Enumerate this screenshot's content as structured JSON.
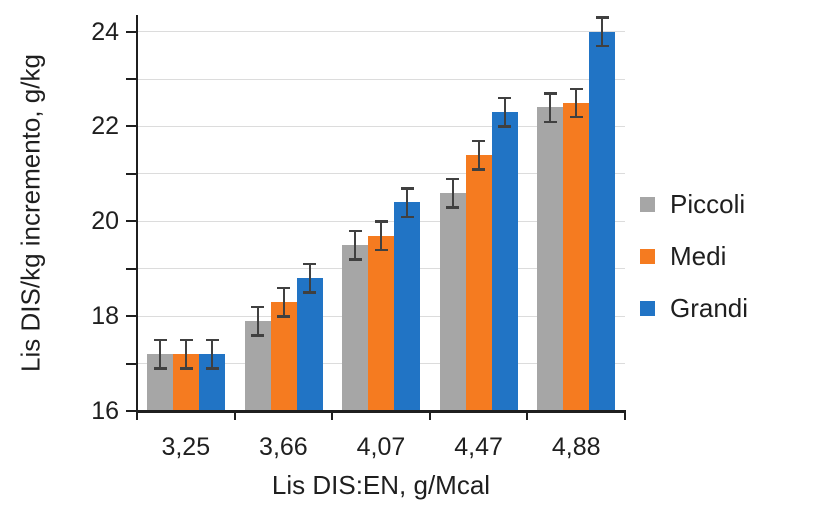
{
  "chart_data": {
    "type": "bar",
    "title": "",
    "xlabel": "Lis DIS:EN, g/Mcal",
    "ylabel": "Lis DIS/kg incremento, g/kg",
    "categories": [
      "3,25",
      "3,66",
      "4,07",
      "4,47",
      "4,88"
    ],
    "series": [
      {
        "name": "Piccoli",
        "color": "#a6a6a6",
        "values": [
          17.2,
          17.9,
          19.5,
          20.6,
          22.4
        ],
        "errors": [
          0.3,
          0.3,
          0.3,
          0.3,
          0.3
        ]
      },
      {
        "name": "Medi",
        "color": "#f57b20",
        "values": [
          17.2,
          18.3,
          19.7,
          21.4,
          22.5
        ],
        "errors": [
          0.3,
          0.3,
          0.3,
          0.3,
          0.3
        ]
      },
      {
        "name": "Grandi",
        "color": "#2174c5",
        "values": [
          17.2,
          18.8,
          20.4,
          22.3,
          24.0
        ],
        "errors": [
          0.3,
          0.3,
          0.3,
          0.3,
          0.3
        ]
      }
    ],
    "ylim": [
      16,
      24.35
    ],
    "yticks_labeled": [
      16,
      18,
      20,
      22,
      24
    ],
    "yticks_minor": [
      17,
      19,
      21,
      23
    ],
    "gridlines": [
      17,
      18,
      19,
      20,
      21,
      22,
      23,
      24
    ],
    "grid": true,
    "legend_position": "right",
    "colors": {
      "axis": "#1f1f1f",
      "grid": "#dcdcdc",
      "error_bar": "#404040",
      "text": "#1f1f1f",
      "background": "#ffffff"
    }
  }
}
